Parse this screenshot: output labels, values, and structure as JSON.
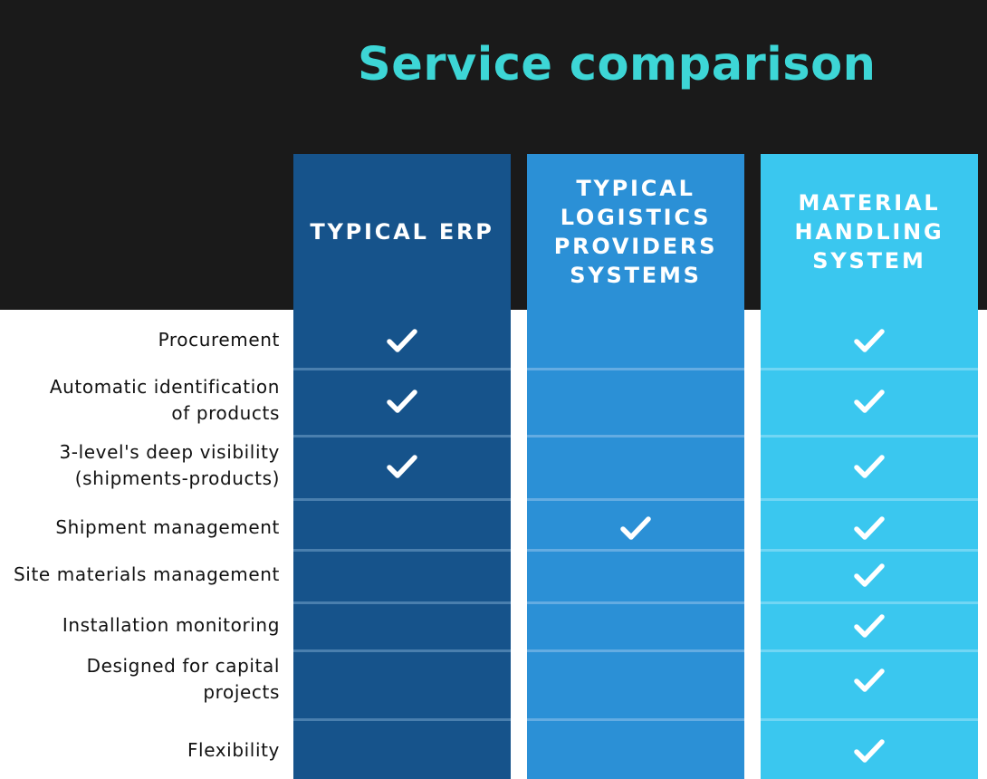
{
  "title": "Service comparison",
  "colors": {
    "background_top": "#1a1a1a",
    "title": "#3dd6d6",
    "col_erp": "#16538b",
    "col_logistics": "#2b90d6",
    "col_mhs": "#3ac7ef",
    "check": "#ffffff"
  },
  "columns": [
    {
      "label": "TYPICAL ERP"
    },
    {
      "label": "TYPICAL\nLOGISTICS\nPROVIDERS\nSYSTEMS"
    },
    {
      "label": "MATERIAL\nHANDLING\nSYSTEM"
    }
  ],
  "rows": [
    {
      "label": "Procurement",
      "checks": [
        true,
        false,
        true
      ]
    },
    {
      "label": "Automatic identification\nof products",
      "checks": [
        true,
        false,
        true
      ]
    },
    {
      "label": "3-level's deep visibility\n(shipments-products)",
      "checks": [
        true,
        false,
        true
      ]
    },
    {
      "label": "Shipment management",
      "checks": [
        false,
        true,
        true
      ]
    },
    {
      "label": "Site materials management",
      "checks": [
        false,
        false,
        true
      ]
    },
    {
      "label": "Installation monitoring",
      "checks": [
        false,
        false,
        true
      ]
    },
    {
      "label": "Designed for capital\nprojects",
      "checks": [
        false,
        false,
        true
      ]
    },
    {
      "label": "Flexibility",
      "checks": [
        false,
        false,
        true
      ]
    }
  ]
}
